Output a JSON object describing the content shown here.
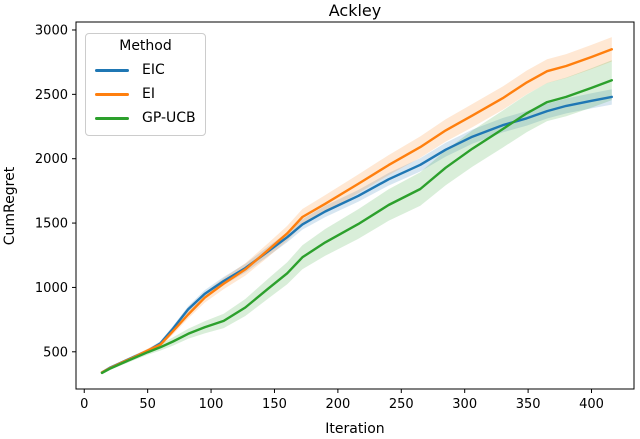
{
  "title": "Ackley",
  "legend": {
    "title": "Method",
    "entries": [
      {
        "label": "EIC",
        "color": "#1f77b4"
      },
      {
        "label": "EI",
        "color": "#ff7f0e"
      },
      {
        "label": "GP-UCB",
        "color": "#2ca02c"
      }
    ]
  },
  "chart_data": {
    "type": "line",
    "title": "Ackley",
    "xlabel": "Iteration",
    "ylabel": "CumRegret",
    "legend_title": "Method",
    "legend_position": "upper left",
    "grid": false,
    "xlim": [
      -6.5,
      433.5
    ],
    "ylim": [
      211,
      3062
    ],
    "x_ticks": [
      0,
      50,
      100,
      150,
      200,
      250,
      300,
      350,
      400
    ],
    "y_ticks": [
      500,
      1000,
      1500,
      2000,
      2500,
      3000
    ],
    "x": [
      14,
      20,
      30,
      40,
      50,
      60,
      70,
      82,
      95,
      110,
      127,
      145,
      160,
      172,
      190,
      216,
      240,
      265,
      285,
      306,
      330,
      349,
      365,
      380,
      400,
      416
    ],
    "series": [
      {
        "name": "EIC",
        "color": "#1f77b4",
        "values": [
          340,
          375,
          420,
          465,
          507,
          565,
          680,
          830,
          950,
          1050,
          1150,
          1280,
          1390,
          1490,
          1590,
          1711,
          1840,
          1953,
          2070,
          2171,
          2260,
          2314,
          2370,
          2410,
          2450,
          2480
        ],
        "band_halfwidth": [
          8,
          9,
          11,
          13,
          15,
          18,
          21,
          25,
          29,
          32,
          34,
          37,
          39,
          41,
          44,
          46,
          49,
          52,
          54,
          55,
          56,
          57,
          58,
          58,
          59,
          60
        ]
      },
      {
        "name": "EI",
        "color": "#ff7f0e",
        "values": [
          340,
          372,
          418,
          462,
          510,
          555,
          660,
          790,
          920,
          1030,
          1140,
          1290,
          1420,
          1547,
          1650,
          1804,
          1950,
          2090,
          2220,
          2335,
          2470,
          2593,
          2680,
          2720,
          2790,
          2850
        ],
        "band_halfwidth": [
          8,
          9,
          11,
          13,
          15,
          20,
          25,
          31,
          38,
          43,
          48,
          54,
          58,
          62,
          67,
          73,
          78,
          83,
          87,
          90,
          91,
          92,
          93,
          93,
          94,
          95
        ]
      },
      {
        "name": "GP-UCB",
        "color": "#2ca02c",
        "values": [
          336,
          368,
          412,
          455,
          497,
          535,
          580,
          640,
          690,
          740,
          844,
          990,
          1110,
          1234,
          1350,
          1492,
          1640,
          1765,
          1930,
          2078,
          2230,
          2353,
          2440,
          2480,
          2550,
          2610
        ],
        "band_halfwidth": [
          10,
          12,
          14,
          17,
          20,
          26,
          32,
          39,
          47,
          56,
          66,
          77,
          86,
          93,
          104,
          115,
          122,
          130,
          136,
          141,
          144,
          146,
          148,
          150,
          153,
          155
        ]
      }
    ]
  }
}
